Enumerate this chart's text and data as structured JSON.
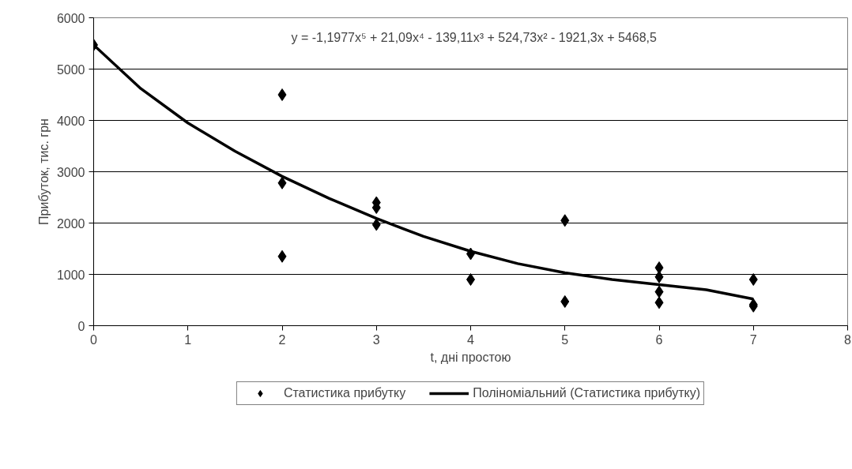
{
  "chart_data": {
    "type": "scatter",
    "xlabel": "t, дні простою",
    "ylabel": "Прибуток, тис. грн",
    "xlim": [
      0,
      8
    ],
    "xticks": [
      0,
      1,
      2,
      3,
      4,
      5,
      6,
      7,
      8
    ],
    "ylim": [
      0,
      6000
    ],
    "yticks": [
      0,
      1000,
      2000,
      3000,
      4000,
      5000,
      6000
    ],
    "grid": "y",
    "legend": "bottom",
    "marker": "diamond",
    "annotations": [
      "y = -1,1977x⁵ + 21,09x⁴ - 139,11x³ + 524,73x² - 1921,3x + 5468,5"
    ],
    "series": [
      {
        "name": "Статистика прибутку",
        "color": "#000000",
        "x": [
          0,
          2,
          2,
          2,
          3,
          3,
          3,
          4,
          4,
          5,
          5,
          6,
          6,
          6,
          6,
          7,
          7,
          7
        ],
        "values": [
          5470,
          4500,
          2780,
          1350,
          2400,
          2300,
          1970,
          1400,
          900,
          2050,
          470,
          1130,
          950,
          660,
          450,
          900,
          410,
          380
        ]
      },
      {
        "name": "Поліноміальний (Статистика прибутку)",
        "type": "line",
        "color": "#000000",
        "line_style": "solid",
        "marker": "none",
        "x": [
          0,
          0.5,
          1,
          1.5,
          2,
          2.5,
          3,
          3.5,
          4,
          4.5,
          5,
          5.5,
          6,
          6.5,
          7
        ],
        "values": [
          5470,
          4620,
          3950,
          3400,
          2910,
          2480,
          2090,
          1740,
          1450,
          1210,
          1030,
          900,
          800,
          700,
          520
        ]
      }
    ]
  }
}
